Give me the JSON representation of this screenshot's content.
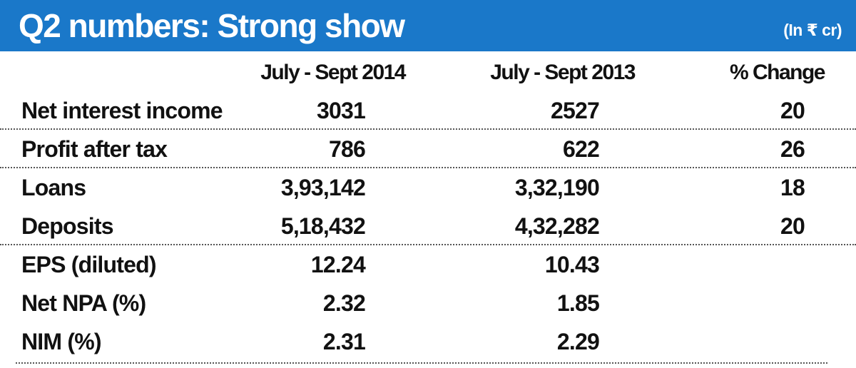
{
  "header": {
    "title": "Q2 numbers: Strong show",
    "unit": "(In ₹ cr)",
    "background_color": "#1a78c9"
  },
  "chart_data": {
    "type": "table",
    "title": "Q2 numbers: Strong show",
    "unit": "(In ₹ cr)",
    "columns": [
      "",
      "July - Sept 2014",
      "July - Sept 2013",
      "% Change"
    ],
    "rows": [
      {
        "label": "Net interest income",
        "values": [
          "3031",
          "2527",
          "20"
        ]
      },
      {
        "label": "Profit after tax",
        "values": [
          "786",
          "622",
          "26"
        ]
      },
      {
        "label": "Loans",
        "values": [
          "3,93,142",
          "3,32,190",
          "18"
        ]
      },
      {
        "label": "Deposits",
        "values": [
          "5,18,432",
          "4,32,282",
          "20"
        ]
      },
      {
        "label": "EPS (diluted)",
        "values": [
          "12.24",
          "10.43",
          ""
        ]
      },
      {
        "label": "Net NPA (%)",
        "values": [
          "2.32",
          "1.85",
          ""
        ]
      },
      {
        "label": "NIM (%)",
        "values": [
          "2.31",
          "2.29",
          ""
        ]
      }
    ]
  }
}
